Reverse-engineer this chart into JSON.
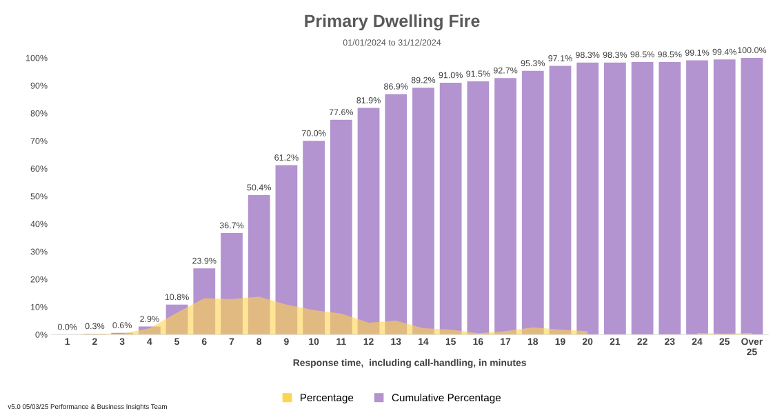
{
  "chart_data": {
    "type": "bar",
    "title": "Primary Dwelling Fire",
    "subtitle": "01/01/2024 to 31/12/2024",
    "xlabel": "Response time,  including call-handling, in minutes",
    "categories": [
      "1",
      "2",
      "3",
      "4",
      "5",
      "6",
      "7",
      "8",
      "9",
      "10",
      "11",
      "12",
      "13",
      "14",
      "15",
      "16",
      "17",
      "18",
      "19",
      "20",
      "21",
      "22",
      "23",
      "24",
      "25",
      "Over\n25"
    ],
    "series": [
      {
        "name": "Percentage",
        "type": "area",
        "color": "#ffd44f",
        "values": [
          0.0,
          0.3,
          0.3,
          2.3,
          7.9,
          13.1,
          12.8,
          13.7,
          10.8,
          8.8,
          7.6,
          4.3,
          5.0,
          2.3,
          1.8,
          0.5,
          1.2,
          2.6,
          1.8,
          1.2,
          null,
          null,
          null,
          0.6,
          0.3,
          0.6
        ]
      },
      {
        "name": "Cumulative Percentage",
        "color": "#b393d0",
        "values": [
          0.0,
          0.3,
          0.6,
          2.9,
          10.8,
          23.9,
          36.7,
          50.4,
          61.2,
          70.0,
          77.6,
          81.9,
          86.9,
          89.2,
          91.0,
          91.5,
          92.7,
          95.3,
          97.1,
          98.3,
          98.3,
          98.5,
          98.5,
          99.1,
          99.4,
          100.0
        ],
        "value_labels": [
          "0.0%",
          "0.3%",
          "0.6%",
          "2.9%",
          "10.8%",
          "23.9%",
          "36.7%",
          "50.4%",
          "61.2%",
          "70.0%",
          "77.6%",
          "81.9%",
          "86.9%",
          "89.2%",
          "91.0%",
          "91.5%",
          "92.7%",
          "95.3%",
          "97.1%",
          "98.3%",
          "98.3%",
          "98.5%",
          "98.5%",
          "99.1%",
          "99.4%",
          "100.0%"
        ]
      }
    ],
    "ylim": [
      0,
      100
    ],
    "yticks": [
      {
        "value": 0,
        "label": "0%"
      },
      {
        "value": 10,
        "label": "10%"
      },
      {
        "value": 20,
        "label": "20%"
      },
      {
        "value": 30,
        "label": "30%"
      },
      {
        "value": 40,
        "label": "40%"
      },
      {
        "value": 50,
        "label": "50%"
      },
      {
        "value": 60,
        "label": "60%"
      },
      {
        "value": 70,
        "label": "70%"
      },
      {
        "value": 80,
        "label": "80%"
      },
      {
        "value": 90,
        "label": "90%"
      },
      {
        "value": 100,
        "label": "100%"
      }
    ],
    "grid": false,
    "legend": "bottom",
    "annotations": [
      "v5.0 05/03/25 Performance & Business Insights Team"
    ]
  }
}
